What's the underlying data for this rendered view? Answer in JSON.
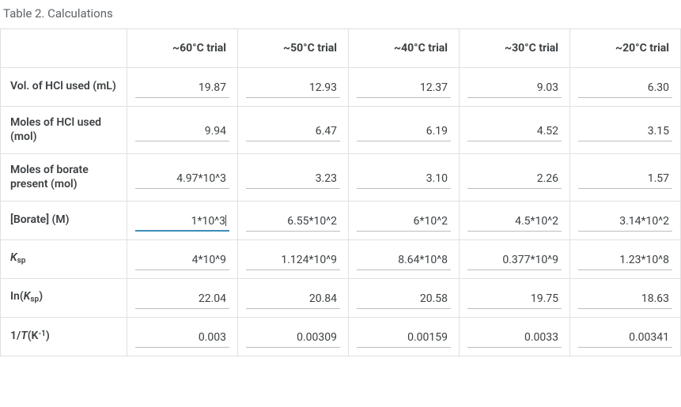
{
  "title": "Table 2. Calculations",
  "columns": [
    "~60°C trial",
    "~50°C trial",
    "~40°C trial",
    "~30°C trial",
    "~20°C trial"
  ],
  "rows": [
    {
      "label_html": "Vol. of HCl used (mL)",
      "cells": [
        "19.87",
        "12.93",
        "12.37",
        "9.03",
        "6.30"
      ]
    },
    {
      "label_html": "Moles of HCl used (mol)",
      "cells": [
        "9.94",
        "6.47",
        "6.19",
        "4.52",
        "3.15"
      ]
    },
    {
      "label_html": "Moles of borate present (mol)",
      "cells": [
        "4.97*10^3",
        "3.23",
        "3.10",
        "2.26",
        "1.57"
      ]
    },
    {
      "label_html": "[Borate] (M)",
      "cells": [
        "1*10^3",
        "6.55*10^2",
        "6*10^2",
        "4.5*10^2",
        "3.14*10^2"
      ]
    },
    {
      "label_html": "<i>K</i><sub>sp</sub>",
      "cells": [
        "4*10^9",
        "1.124*10^9",
        "8.64*10^8",
        "0.377*10^9",
        "1.23*10^8"
      ]
    },
    {
      "label_html": "In(<i>K</i><sub>sp</sub>)",
      "cells": [
        "22.04",
        "20.84",
        "20.58",
        "19.75",
        "18.63"
      ]
    },
    {
      "label_html": "1/<i>T</i>(K<sup>-1</sup>)",
      "cells": [
        "0.003",
        "0.00309",
        "0.00159",
        "0.0033",
        "0.00341"
      ]
    }
  ],
  "active_cell": {
    "row": 3,
    "col": 0
  },
  "style": {
    "border_color": "#e0e0e0",
    "underline_color": "#bdbdbd",
    "active_underline_color": "#3b8db8",
    "title_color": "#5f6368",
    "text_color": "#3c4043",
    "header_font_weight": 700,
    "rowhead_font_weight": 600,
    "cell_font_size": 14,
    "title_font_size": 15
  }
}
